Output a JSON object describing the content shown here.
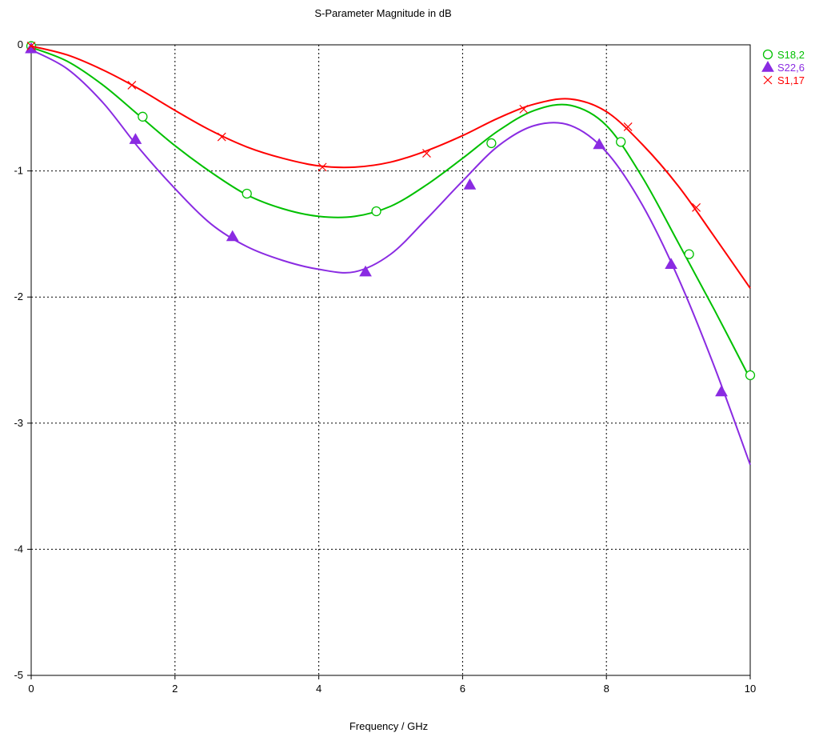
{
  "chart_data": {
    "type": "line",
    "title": "S-Parameter Magnitude in dB",
    "xlabel": "Frequency / GHz",
    "ylabel": "",
    "xlim": [
      0,
      10
    ],
    "ylim": [
      -5,
      0
    ],
    "xticks": [
      "0",
      "2",
      "4",
      "6",
      "8",
      "10"
    ],
    "yticks": [
      "0",
      "-1",
      "-2",
      "-3",
      "-4",
      "-5"
    ],
    "grid": true,
    "legend_position": "top-right",
    "series": [
      {
        "name": "S18,2",
        "color": "#00c000",
        "marker": "circle",
        "x": [
          0,
          0.5,
          1,
          1.5,
          2,
          2.5,
          3,
          3.5,
          4,
          4.5,
          5,
          5.5,
          6,
          6.5,
          7,
          7.5,
          8,
          8.5,
          9,
          9.5,
          10
        ],
        "y": [
          -0.02,
          -0.13,
          -0.32,
          -0.56,
          -0.8,
          -1.01,
          -1.19,
          -1.3,
          -1.36,
          -1.36,
          -1.28,
          -1.11,
          -0.9,
          -0.68,
          -0.52,
          -0.48,
          -0.64,
          -1.05,
          -1.57,
          -2.1,
          -2.65
        ],
        "markers_x": [
          0,
          1.55,
          3.0,
          4.8,
          6.4,
          8.2,
          9.15,
          10
        ],
        "markers_y": [
          -0.01,
          -0.57,
          -1.18,
          -1.32,
          -0.78,
          -0.77,
          -1.66,
          -2.62
        ]
      },
      {
        "name": "S22,6",
        "color": "#8a2be2",
        "marker": "triangle",
        "x": [
          0,
          0.5,
          1,
          1.5,
          2,
          2.5,
          3,
          3.5,
          4,
          4.5,
          5,
          5.5,
          6,
          6.5,
          7,
          7.5,
          8,
          8.5,
          9,
          9.5,
          10
        ],
        "y": [
          -0.04,
          -0.19,
          -0.46,
          -0.82,
          -1.14,
          -1.42,
          -1.6,
          -1.71,
          -1.78,
          -1.8,
          -1.66,
          -1.38,
          -1.08,
          -0.8,
          -0.64,
          -0.64,
          -0.85,
          -1.27,
          -1.85,
          -2.55,
          -3.33
        ],
        "markers_x": [
          0,
          1.45,
          2.8,
          4.65,
          6.1,
          7.9,
          8.9,
          9.6
        ],
        "markers_y": [
          -0.03,
          -0.75,
          -1.52,
          -1.8,
          -1.11,
          -0.79,
          -1.74,
          -2.75
        ]
      },
      {
        "name": "S1,17",
        "color": "#ff0000",
        "marker": "x",
        "x": [
          0,
          0.5,
          1,
          1.5,
          2,
          2.5,
          3,
          3.5,
          4,
          4.5,
          5,
          5.5,
          6,
          6.5,
          7,
          7.5,
          8,
          8.5,
          9,
          9.5,
          10
        ],
        "y": [
          -0.01,
          -0.08,
          -0.2,
          -0.35,
          -0.52,
          -0.68,
          -0.81,
          -0.9,
          -0.96,
          -0.97,
          -0.93,
          -0.84,
          -0.72,
          -0.58,
          -0.47,
          -0.43,
          -0.53,
          -0.79,
          -1.12,
          -1.52,
          -1.93
        ],
        "markers_x": [
          0,
          1.4,
          2.65,
          4.05,
          5.5,
          6.85,
          8.3,
          9.25
        ],
        "markers_y": [
          -0.01,
          -0.32,
          -0.73,
          -0.97,
          -0.86,
          -0.51,
          -0.65,
          -1.29
        ]
      }
    ]
  }
}
